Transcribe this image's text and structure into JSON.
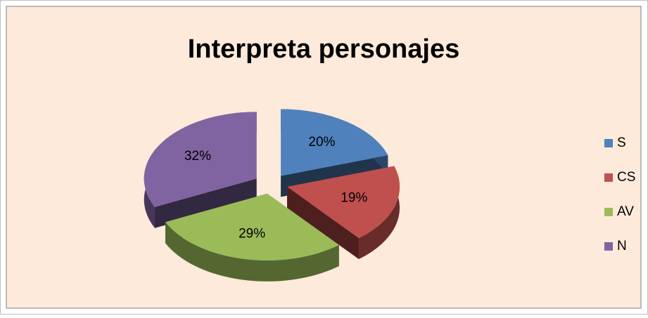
{
  "chart_data": {
    "type": "pie",
    "title": "Interpreta personajes",
    "categories": [
      "S",
      "CS",
      "AV",
      "N"
    ],
    "values": [
      20,
      19,
      29,
      32
    ],
    "value_labels": [
      "20%",
      "19%",
      "29%",
      "32%"
    ],
    "colors": [
      "#4f81bd",
      "#c0504d",
      "#9bbb59",
      "#8064a2"
    ],
    "legend": "right"
  }
}
